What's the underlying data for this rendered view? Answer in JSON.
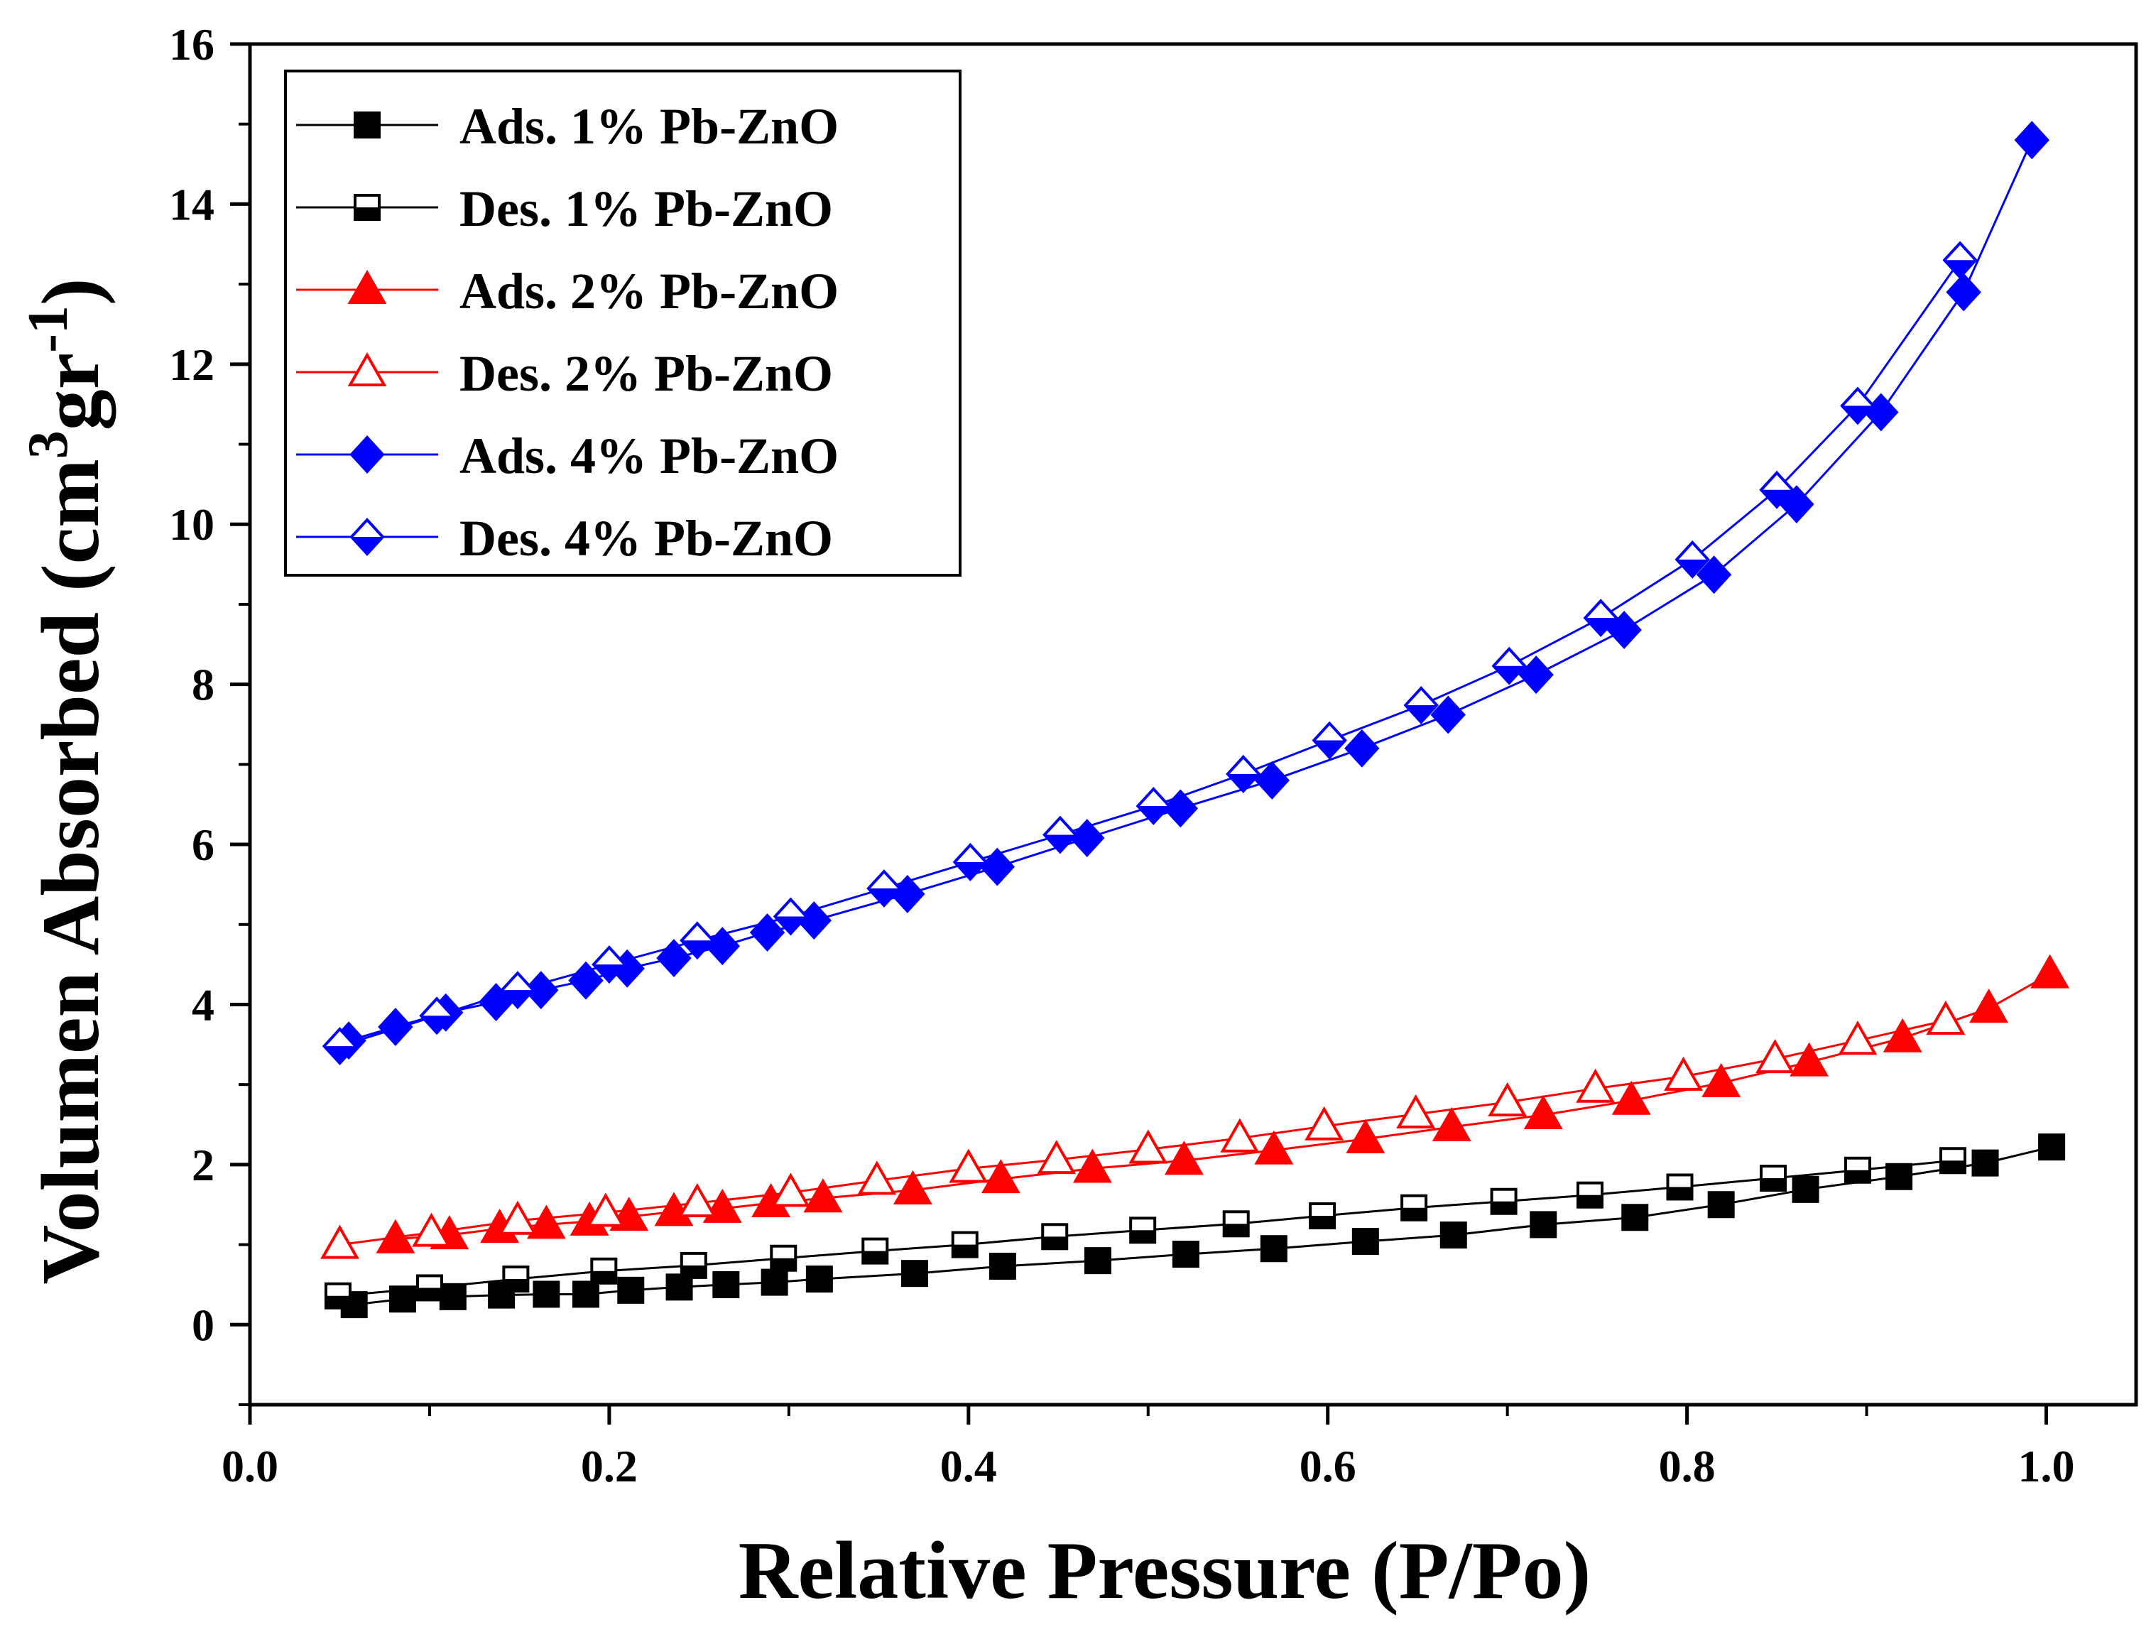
{
  "chart_data": {
    "type": "line",
    "title": "",
    "xlabel": "Relative Pressure (P/Po)",
    "ylabel": {
      "main": "Volumen Absorbed (cm",
      "sup1": "3",
      "mid": "gr",
      "sup2": "-1",
      "end": ")"
    },
    "xlim": [
      0.0,
      1.05
    ],
    "ylim": [
      -1,
      16
    ],
    "xticks": [
      "0.0",
      "0.2",
      "0.4",
      "0.6",
      "0.8",
      "1.0"
    ],
    "yticks": [
      "0",
      "2",
      "4",
      "6",
      "8",
      "10",
      "12",
      "14",
      "16"
    ],
    "grid": false,
    "legend_position": "top-left",
    "series": [
      {
        "name": "Ads. 1% Pb-ZnO",
        "color": "#000000",
        "marker": "square",
        "filled": true,
        "x": [
          0.058,
          0.085,
          0.113,
          0.14,
          0.165,
          0.187,
          0.212,
          0.239,
          0.265,
          0.292,
          0.317,
          0.37,
          0.419,
          0.472,
          0.521,
          0.57,
          0.621,
          0.67,
          0.72,
          0.771,
          0.819,
          0.866,
          0.918,
          0.966,
          1.003
        ],
        "y": [
          0.25,
          0.32,
          0.35,
          0.37,
          0.38,
          0.38,
          0.43,
          0.47,
          0.5,
          0.53,
          0.57,
          0.64,
          0.73,
          0.8,
          0.88,
          0.95,
          1.04,
          1.12,
          1.25,
          1.34,
          1.5,
          1.69,
          1.85,
          2.02,
          2.22
        ]
      },
      {
        "name": "Des. 1% Pb-ZnO",
        "color": "#000000",
        "marker": "square",
        "filled": false,
        "x": [
          0.948,
          0.895,
          0.848,
          0.796,
          0.746,
          0.698,
          0.648,
          0.597,
          0.549,
          0.497,
          0.448,
          0.398,
          0.348,
          0.297,
          0.247,
          0.197,
          0.148,
          0.1,
          0.049
        ],
        "y": [
          2.05,
          1.93,
          1.83,
          1.72,
          1.62,
          1.54,
          1.46,
          1.36,
          1.26,
          1.18,
          1.1,
          1.0,
          0.92,
          0.83,
          0.74,
          0.67,
          0.57,
          0.46,
          0.36
        ]
      },
      {
        "name": "Ads. 2% Pb-ZnO",
        "color": "#ff0000",
        "marker": "triangle",
        "filled": true,
        "x": [
          0.081,
          0.111,
          0.139,
          0.165,
          0.189,
          0.211,
          0.236,
          0.263,
          0.29,
          0.319,
          0.369,
          0.418,
          0.469,
          0.52,
          0.57,
          0.621,
          0.669,
          0.72,
          0.769,
          0.819,
          0.868,
          0.92,
          0.968,
          1.002
        ],
        "y": [
          1.07,
          1.12,
          1.2,
          1.25,
          1.29,
          1.35,
          1.41,
          1.45,
          1.52,
          1.58,
          1.68,
          1.82,
          1.95,
          2.05,
          2.18,
          2.32,
          2.47,
          2.62,
          2.8,
          3.02,
          3.28,
          3.58,
          3.95,
          4.38
        ]
      },
      {
        "name": "Des. 2% Pb-ZnO",
        "color": "#ff0000",
        "marker": "triangle",
        "filled": false,
        "x": [
          0.944,
          0.895,
          0.849,
          0.798,
          0.749,
          0.7,
          0.649,
          0.598,
          0.551,
          0.5,
          0.449,
          0.4,
          0.349,
          0.301,
          0.249,
          0.198,
          0.149,
          0.101,
          0.05
        ],
        "y": [
          3.8,
          3.55,
          3.32,
          3.1,
          2.95,
          2.78,
          2.63,
          2.48,
          2.33,
          2.19,
          2.06,
          1.95,
          1.8,
          1.65,
          1.52,
          1.4,
          1.3,
          1.15,
          1.0
        ]
      },
      {
        "name": "Ads. 4% Pb-ZnO",
        "color": "#0000ff",
        "marker": "diamond",
        "filled": true,
        "x": [
          0.055,
          0.081,
          0.109,
          0.137,
          0.162,
          0.187,
          0.21,
          0.236,
          0.263,
          0.288,
          0.314,
          0.366,
          0.416,
          0.466,
          0.518,
          0.569,
          0.619,
          0.667,
          0.716,
          0.765,
          0.815,
          0.861,
          0.908,
          0.954,
          0.992
        ],
        "y": [
          3.55,
          3.72,
          3.9,
          4.03,
          4.18,
          4.3,
          4.45,
          4.58,
          4.73,
          4.9,
          5.05,
          5.38,
          5.72,
          6.08,
          6.45,
          6.8,
          7.2,
          7.62,
          8.12,
          8.68,
          9.37,
          10.25,
          11.4,
          12.9,
          14.8
        ]
      },
      {
        "name": "Des. 4% Pb-ZnO",
        "color": "#0000ff",
        "marker": "diamond",
        "filled": false,
        "x": [
          0.952,
          0.895,
          0.85,
          0.803,
          0.752,
          0.701,
          0.652,
          0.601,
          0.553,
          0.503,
          0.451,
          0.401,
          0.353,
          0.301,
          0.249,
          0.2,
          0.149,
          0.104,
          0.05
        ],
        "y": [
          13.3,
          11.48,
          10.43,
          9.56,
          8.83,
          8.23,
          7.74,
          7.3,
          6.88,
          6.48,
          6.12,
          5.78,
          5.45,
          5.1,
          4.8,
          4.5,
          4.18,
          3.86,
          3.48
        ]
      }
    ]
  }
}
